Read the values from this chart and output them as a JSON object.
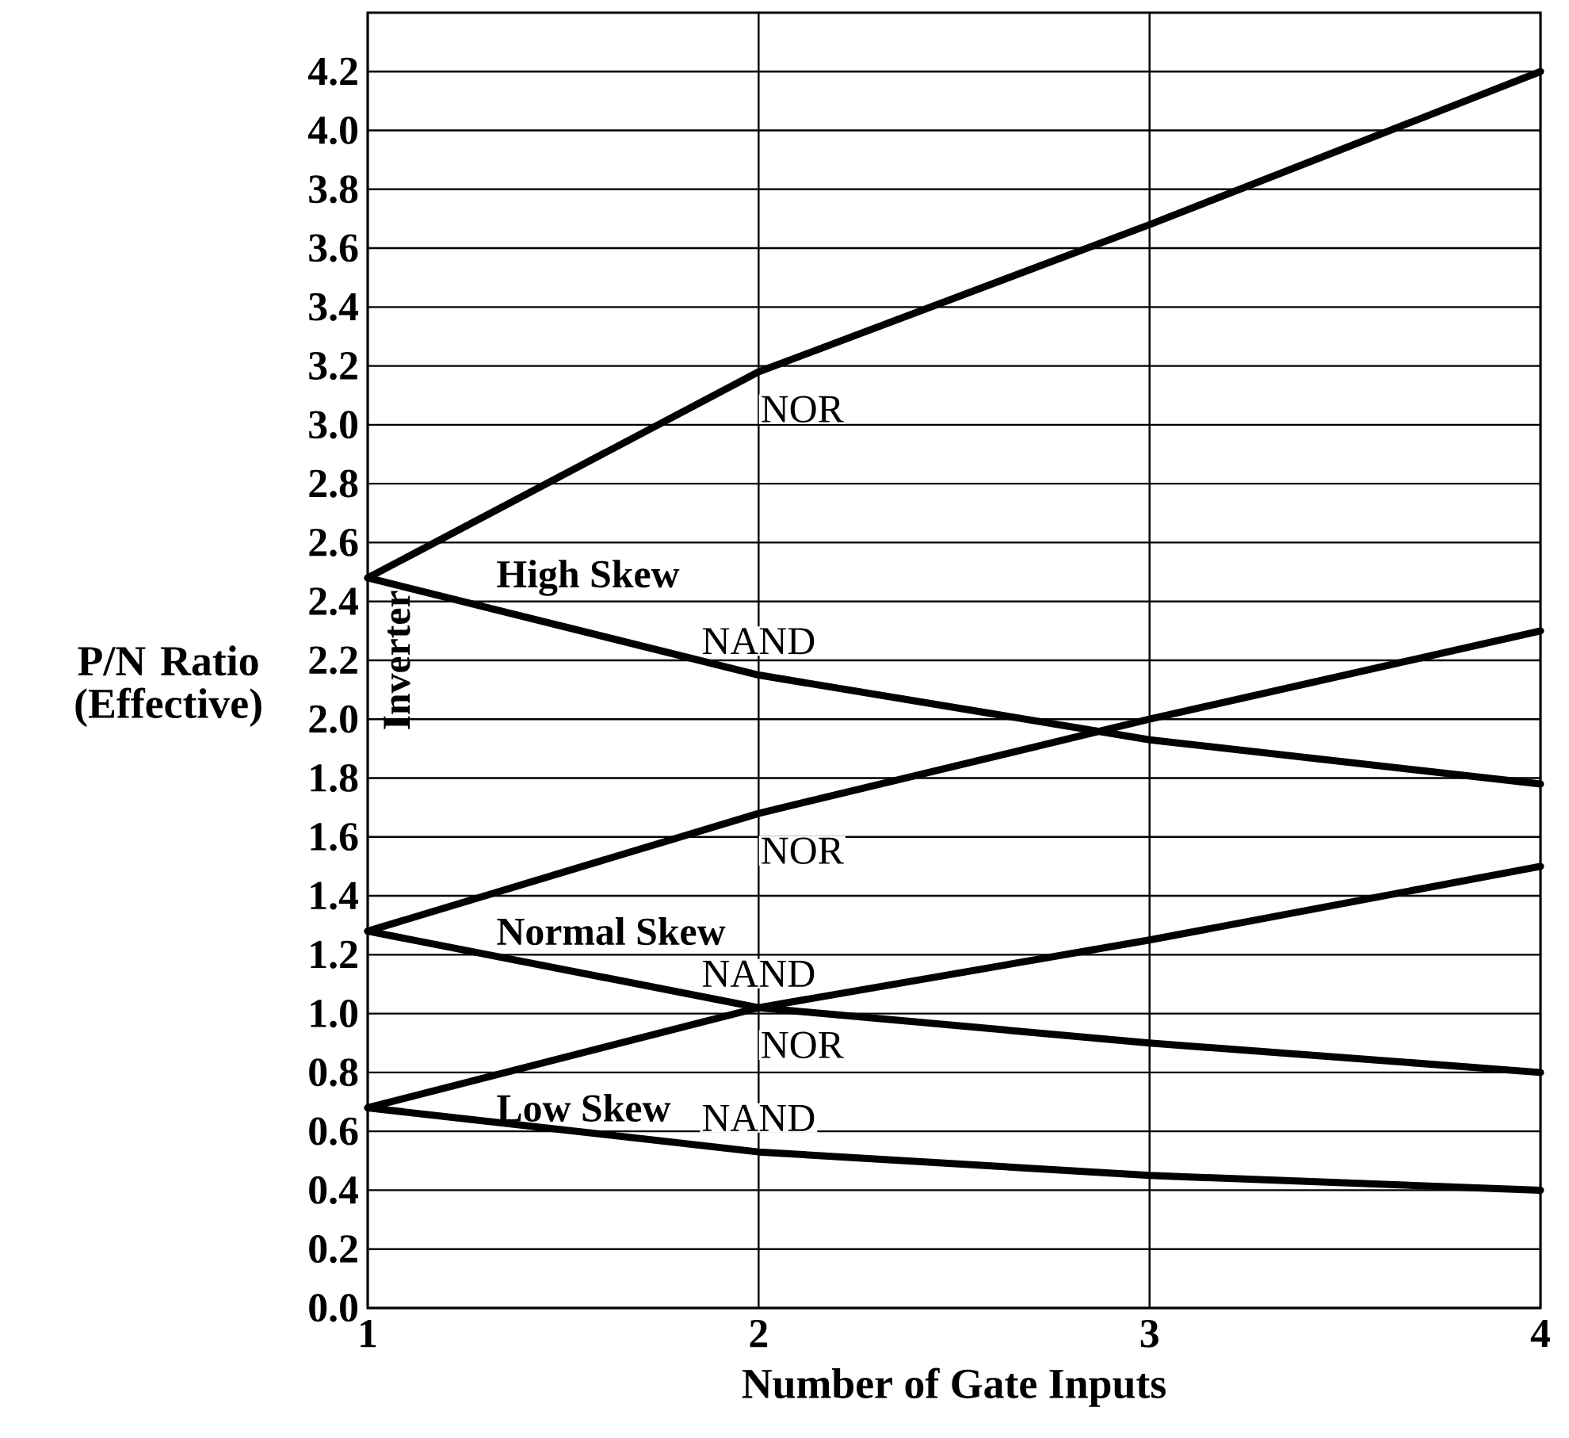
{
  "chart_data": {
    "type": "line",
    "xlabel": "Number of Gate Inputs",
    "ylabel": "P/N Ratio (Effective)",
    "x": [
      1,
      2,
      3,
      4
    ],
    "series": [
      {
        "name": "NOR",
        "color": "#000000",
        "values": [
          2.48,
          3.18,
          3.68,
          4.2
        ]
      },
      {
        "name": "NAND",
        "color": "#000000",
        "values": [
          2.48,
          2.15,
          1.93,
          1.78
        ]
      },
      {
        "name": "NOR",
        "color": "#000000",
        "values": [
          1.28,
          1.68,
          2.0,
          2.3
        ]
      },
      {
        "name": "NAND",
        "color": "#000000",
        "values": [
          1.28,
          1.02,
          0.9,
          0.8
        ]
      },
      {
        "name": "NOR",
        "color": "#000000",
        "values": [
          0.68,
          1.02,
          1.25,
          1.5
        ]
      },
      {
        "name": "NAND",
        "color": "#000000",
        "values": [
          0.68,
          0.53,
          0.45,
          0.4
        ]
      }
    ],
    "xlim": [
      1,
      4
    ],
    "ylim": [
      0,
      4.4
    ],
    "xticks": [
      1,
      2,
      3,
      4
    ],
    "yticks": [
      {
        "value": 0,
        "label": "0.0"
      },
      {
        "value": 0.2,
        "label": "0.2"
      },
      {
        "value": 0.4,
        "label": "0.4"
      },
      {
        "value": 0.6,
        "label": "0.6"
      },
      {
        "value": 0.8,
        "label": "0.8"
      },
      {
        "value": 1.0,
        "label": "1.0"
      },
      {
        "value": 1.2,
        "label": "1.2"
      },
      {
        "value": 1.4,
        "label": "1.4"
      },
      {
        "value": 1.6,
        "label": "1.6"
      },
      {
        "value": 1.8,
        "label": "1.8"
      },
      {
        "value": 2.0,
        "label": "2.0"
      },
      {
        "value": 2.2,
        "label": "2.2"
      },
      {
        "value": 2.4,
        "label": "2.4"
      },
      {
        "value": 2.6,
        "label": "2.6"
      },
      {
        "value": 2.8,
        "label": "2.8"
      },
      {
        "value": 3.0,
        "label": "3.0"
      },
      {
        "value": 3.2,
        "label": "3.2"
      },
      {
        "value": 3.4,
        "label": "3.4"
      },
      {
        "value": 3.6,
        "label": "3.6"
      },
      {
        "value": 3.8,
        "label": "3.8"
      },
      {
        "value": 4.0,
        "label": "4.0"
      },
      {
        "value": 4.2,
        "label": "4.2"
      }
    ],
    "grid": true,
    "marker": "none",
    "line_style": "solid",
    "annotations": [
      "High Skew",
      "Normal Skew",
      "Low Skew",
      "Inverter"
    ]
  }
}
